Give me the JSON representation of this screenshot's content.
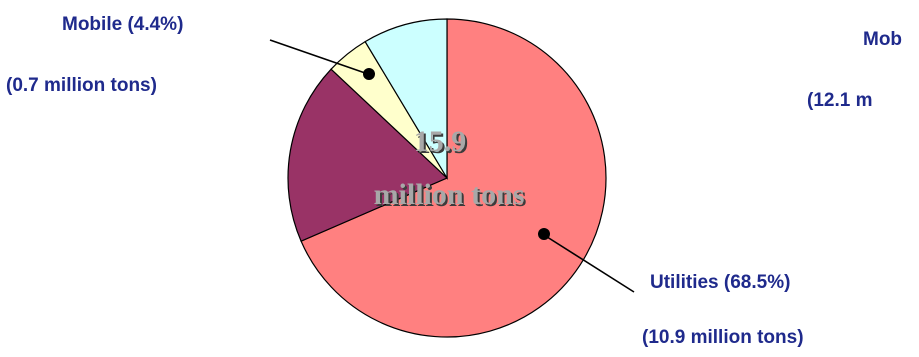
{
  "chart_data": {
    "type": "pie",
    "center_label": [
      "15.9",
      "million tons"
    ],
    "slices": [
      {
        "label": "Utilities (68.5%)",
        "sublabel": "(10.9 million tons)",
        "percent": 68.5,
        "color": "#ff8080"
      },
      {
        "label": "",
        "sublabel": "",
        "percent": 18.5,
        "color": "#993366"
      },
      {
        "label": "Mobile (4.4%)",
        "sublabel": "(0.7 million tons)",
        "percent": 4.4,
        "color": "#ffffcc"
      },
      {
        "label": "",
        "sublabel": "",
        "percent": 8.6,
        "color": "#ccffff"
      }
    ]
  },
  "partial_label": {
    "line1": "Mob",
    "line2": "(12.1 m"
  }
}
